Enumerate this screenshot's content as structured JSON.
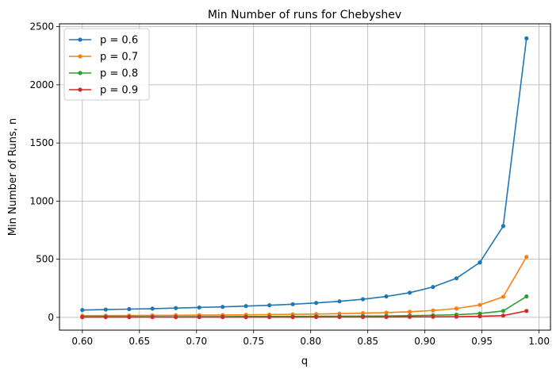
{
  "chart_data": {
    "type": "line",
    "title": "Min Number of runs for Chebyshev",
    "xlabel": "q",
    "ylabel": "Min Number of Runs, n",
    "xlim": [
      0.58,
      1.01
    ],
    "ylim": [
      -110,
      2525
    ],
    "xticks": [
      0.6,
      0.65,
      0.7,
      0.75,
      0.8,
      0.85,
      0.9,
      0.95,
      1.0
    ],
    "xtick_labels": [
      "0.60",
      "0.65",
      "0.70",
      "0.75",
      "0.80",
      "0.85",
      "0.90",
      "0.95",
      "1.00"
    ],
    "yticks": [
      0,
      500,
      1000,
      1500,
      2000,
      2500
    ],
    "ytick_labels": [
      "0",
      "500",
      "1000",
      "1500",
      "2000",
      "2500"
    ],
    "grid": true,
    "legend_position": "top-left",
    "x": [
      0.6,
      0.6205,
      0.641,
      0.6614,
      0.6819,
      0.7024,
      0.7229,
      0.7433,
      0.7638,
      0.7843,
      0.8048,
      0.8252,
      0.8457,
      0.8662,
      0.8867,
      0.9071,
      0.9276,
      0.9481,
      0.9686,
      0.989
    ],
    "series": [
      {
        "name": "p = 0.6",
        "color": "#1f77b4",
        "values": [
          63,
          67,
          71,
          75,
          80,
          85,
          90,
          97,
          104,
          113,
          124,
          138,
          156,
          180,
          212,
          261,
          336,
          472,
          785,
          2400
        ]
      },
      {
        "name": "p = 0.7",
        "color": "#ff7f0e",
        "values": [
          14,
          15,
          16,
          17,
          18,
          19,
          20,
          22,
          24,
          26,
          28,
          32,
          36,
          41,
          48,
          59,
          76,
          107,
          177,
          520
        ]
      },
      {
        "name": "p = 0.8",
        "color": "#2ca02c",
        "values": [
          4,
          5,
          5,
          5,
          5,
          6,
          6,
          7,
          7,
          8,
          9,
          10,
          11,
          12,
          15,
          18,
          23,
          33,
          55,
          180
        ]
      },
      {
        "name": "p = 0.9",
        "color": "#d62728",
        "values": [
          2,
          2,
          2,
          2,
          2,
          2,
          2,
          2,
          2,
          2,
          3,
          3,
          3,
          3,
          4,
          5,
          6,
          9,
          15,
          55
        ]
      }
    ]
  }
}
